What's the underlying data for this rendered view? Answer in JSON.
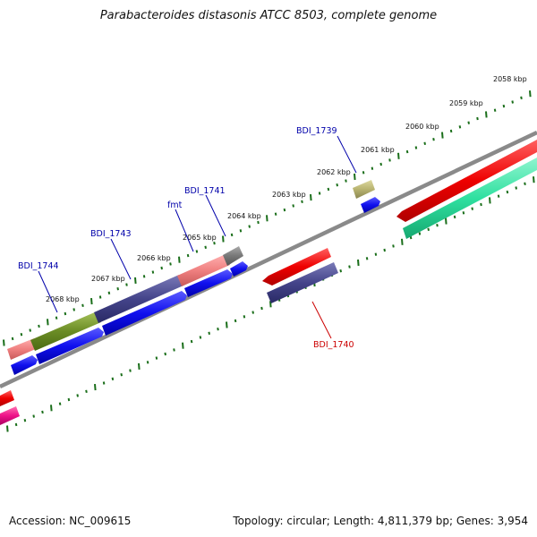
{
  "title": "Parabacteroides distasonis ATCC 8503, complete genome",
  "footer": {
    "accession": "Accession: NC_009615",
    "topology": "Topology: circular; Length: 4,811,379 bp; Genes: 3,954"
  },
  "colors": {
    "backbone": "#8a8a8a",
    "tick": "#1a6e1a",
    "label_blue": "#0000aa",
    "label_red": "#cc0000"
  },
  "kbp_labels": [
    {
      "id": "k2058",
      "text": "2058 kbp"
    },
    {
      "id": "k2059",
      "text": "2059 kbp"
    },
    {
      "id": "k2060",
      "text": "2060 kbp"
    },
    {
      "id": "k2061",
      "text": "2061 kbp"
    },
    {
      "id": "k2062",
      "text": "2062 kbp"
    },
    {
      "id": "k2063",
      "text": "2063 kbp"
    },
    {
      "id": "k2064",
      "text": "2064 kbp"
    },
    {
      "id": "k2065",
      "text": "2065 kbp"
    },
    {
      "id": "k2066",
      "text": "2066 kbp"
    },
    {
      "id": "k2067",
      "text": "2067 kbp"
    },
    {
      "id": "k2068",
      "text": "2068 kbp"
    }
  ],
  "gene_labels": [
    {
      "id": "bdi1739",
      "text": "BDI_1739",
      "color": "#0000aa"
    },
    {
      "id": "bdi1741",
      "text": "BDI_1741",
      "color": "#0000aa"
    },
    {
      "id": "fmt",
      "text": "fmt",
      "color": "#0000aa"
    },
    {
      "id": "bdi1743",
      "text": "BDI_1743",
      "color": "#0000aa"
    },
    {
      "id": "bdi1744",
      "text": "BDI_1744",
      "color": "#0000aa"
    },
    {
      "id": "bdi1740",
      "text": "BDI_1740",
      "color": "#cc0000"
    }
  ]
}
